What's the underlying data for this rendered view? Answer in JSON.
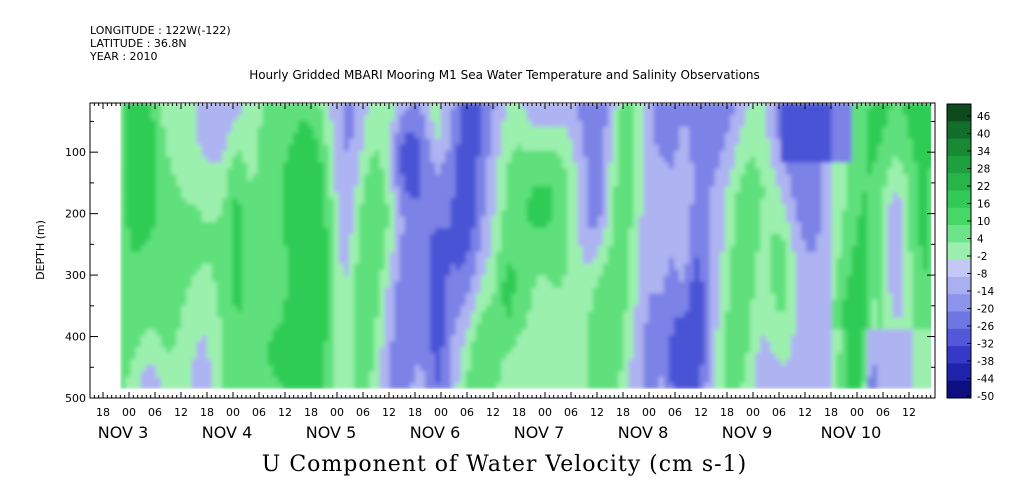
{
  "header": {
    "longitude": "LONGITUDE : 122W(-122)",
    "latitude": "LATITUDE : 36.8N",
    "year": "YEAR : 2010"
  },
  "chart_data": {
    "type": "heatmap",
    "title": "Hourly Gridded MBARI Mooring M1 Sea Water Temperature and Salinity Observations",
    "xlabel": "",
    "ylabel": "DEPTH (m)",
    "variable_label": "U Component of Water Velocity (cm s-1)",
    "y_axis": {
      "range": [
        500,
        20
      ],
      "inverted": true,
      "ticks": [
        100,
        200,
        300,
        400,
        500
      ],
      "minor_ticks": [
        50,
        150,
        250,
        350,
        450
      ]
    },
    "x_axis": {
      "start": "NOV 2 15:00",
      "end": "NOV 10 18:00",
      "hour_labels": [
        "18",
        "00",
        "06",
        "12",
        "18",
        "00",
        "06",
        "12",
        "18",
        "00",
        "06",
        "12",
        "18",
        "00",
        "06",
        "12",
        "18",
        "00",
        "06",
        "12",
        "18",
        "00",
        "06",
        "12",
        "18",
        "00",
        "06",
        "12",
        "18",
        "00",
        "06",
        "12"
      ],
      "day_labels": [
        "NOV  3",
        "NOV  4",
        "NOV  5",
        "NOV  6",
        "NOV  7",
        "NOV  8",
        "NOV  9",
        "NOV 10"
      ]
    },
    "data_extent": {
      "x_start": "NOV 2 22:00",
      "x_end": "NOV 10 17:00",
      "depth_top": 20,
      "depth_bottom": 485
    },
    "colorbar": {
      "labels": [
        "46",
        "40",
        "34",
        "28",
        "22",
        "16",
        "10",
        "4",
        "-2",
        "-8",
        "-14",
        "-20",
        "-26",
        "-32",
        "-38",
        "-44",
        "-50"
      ],
      "colors": [
        "#0d4a1c",
        "#126e2a",
        "#188a35",
        "#1fa03f",
        "#27b54a",
        "#33c857",
        "#47d767",
        "#6ee48a",
        "#9aeeae",
        "#c4c8f5",
        "#a9aff0",
        "#8c93ea",
        "#6f76e2",
        "#5258d8",
        "#3539c8",
        "#1f22aa",
        "#0d0f80"
      ]
    },
    "palette": {
      "strong_green": "#2ecc55",
      "green": "#5fe07c",
      "light_green": "#9cf0ae",
      "lavender": "#aeb3f2",
      "blue": "#7b82e6",
      "strong_blue": "#4a52d6"
    }
  }
}
